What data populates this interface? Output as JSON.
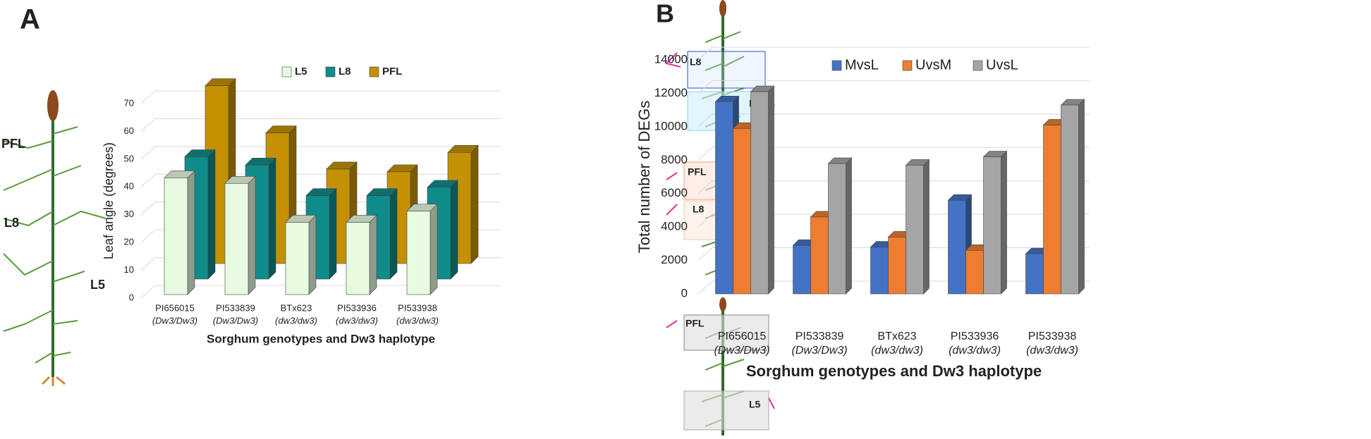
{
  "figure": {
    "panel_labels": [
      "A",
      "B"
    ],
    "plant_a_labels": [
      "PFL",
      "L8",
      "L5"
    ],
    "plant_b_labels": [
      [
        "L8",
        "L5"
      ],
      [
        "PFL",
        "L8"
      ],
      [
        "PFL",
        "L5"
      ]
    ]
  },
  "chart_data": [
    {
      "type": "bar",
      "layout": "depth",
      "ylabel": "Leaf angle (degrees)",
      "xlabel": "Sorghum genotypes and Dw3 haplotype",
      "categories": [
        "PI656015",
        "PI533839",
        "BTx623",
        "PI533936",
        "PI533938"
      ],
      "haplotypes": [
        "(Dw3/Dw3)",
        "(Dw3/Dw3)",
        "(dw3/dw3)",
        "(dw3/dw3)",
        "(dw3/dw3)"
      ],
      "series": [
        {
          "name": "L5",
          "color": "#e6fbe0",
          "values": [
            42,
            40,
            26,
            26,
            30
          ]
        },
        {
          "name": "L8",
          "color": "#0f8c8a",
          "values": [
            44,
            41,
            30,
            30,
            33
          ]
        },
        {
          "name": "PFL",
          "color": "#c49102",
          "values": [
            64,
            47,
            34,
            33,
            40
          ]
        }
      ],
      "ylim": [
        0,
        70
      ],
      "yticks": [
        0,
        10,
        20,
        30,
        40,
        50,
        60,
        70
      ],
      "grid": true,
      "legend": "top"
    },
    {
      "type": "bar",
      "layout": "grouped",
      "ylabel": "Total number of DEGs",
      "xlabel": "Sorghum genotypes and Dw3 haplotype",
      "categories": [
        "PI656015",
        "PI533839",
        "BTx623",
        "PI533936",
        "PI533938"
      ],
      "haplotypes": [
        "(Dw3/Dw3)",
        "(Dw3/Dw3)",
        "(dw3/dw3)",
        "(dw3/dw3)",
        "(dw3/dw3)"
      ],
      "series": [
        {
          "name": "MvsL",
          "color": "#4472c4",
          "values": [
            11500,
            2900,
            2800,
            5600,
            2400
          ]
        },
        {
          "name": "UvsM",
          "color": "#ed7d31",
          "values": [
            9900,
            4600,
            3400,
            2600,
            10100
          ]
        },
        {
          "name": "UvsL",
          "color": "#a5a5a5",
          "values": [
            12100,
            7800,
            7700,
            8200,
            11300
          ]
        }
      ],
      "ylim": [
        0,
        14000
      ],
      "yticks": [
        0,
        2000,
        4000,
        6000,
        8000,
        10000,
        12000,
        14000
      ],
      "grid": true,
      "legend": "top"
    }
  ]
}
